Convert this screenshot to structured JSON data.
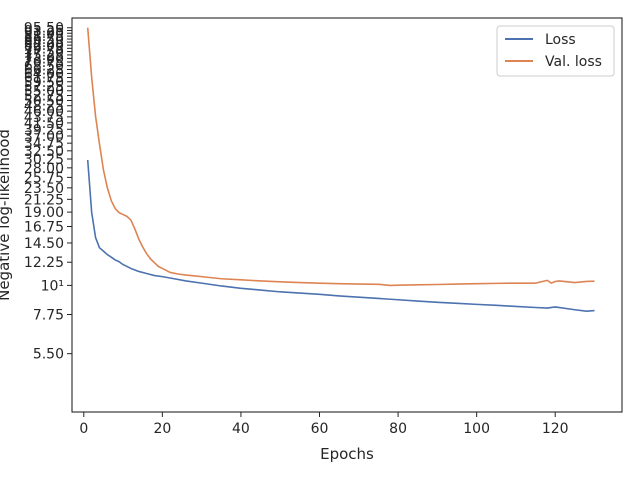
{
  "chart_data": {
    "type": "line",
    "title": "",
    "xlabel": "Epochs",
    "ylabel": "Negative log-likelihood",
    "yscale": "log",
    "grid": false,
    "legend_position": "top-right",
    "xlim": [
      -3,
      137
    ],
    "ylim": [
      3.3,
      104
    ],
    "x_ticks": [
      0,
      20,
      40,
      60,
      80,
      100,
      120
    ],
    "x_tick_labels": [
      "0",
      "20",
      "40",
      "60",
      "80",
      "100",
      "120"
    ],
    "y_ticks": [
      5.5,
      7.75,
      10,
      12.25,
      14.5,
      16.75,
      19.0,
      21.25,
      23.5,
      25.75,
      28.0,
      30.25,
      32.5,
      34.75,
      37.0,
      39.25,
      41.5,
      43.75,
      46.0,
      48.25,
      50.5,
      52.75,
      55.0,
      57.25,
      59.5,
      61.75,
      64.0,
      66.25,
      68.5,
      70.75,
      73.0,
      75.25,
      77.5,
      79.75,
      82.0,
      84.25,
      86.5,
      88.75,
      91.0,
      93.25,
      95.5
    ],
    "y_tick_labels": [
      "5.50",
      "7.75",
      "10¹",
      "12.25",
      "14.50",
      "16.75",
      "19.00",
      "21.25",
      "23.50",
      "25.75",
      "28.00",
      "30.25",
      "32.50",
      "34.75",
      "37.00",
      "39.25",
      "41.50",
      "43.75",
      "46.00",
      "48.25",
      "50.50",
      "52.75",
      "55.00",
      "57.25",
      "59.50",
      "61.75",
      "64.00",
      "66.25",
      "68.50",
      "70.75",
      "73.00",
      "75.25",
      "77.50",
      "79.75",
      "82.00",
      "84.25",
      "86.50",
      "88.75",
      "91.00",
      "93.25",
      "95.50"
    ],
    "series": [
      {
        "name": "Loss",
        "color": "#4c72b0",
        "x": [
          1,
          2,
          3,
          4,
          5,
          6,
          7,
          8,
          9,
          10,
          12,
          14,
          16,
          18,
          20,
          23,
          26,
          30,
          35,
          40,
          45,
          50,
          55,
          60,
          65,
          70,
          75,
          80,
          85,
          90,
          95,
          100,
          105,
          110,
          115,
          118,
          120,
          125,
          128,
          130
        ],
        "values": [
          30.0,
          19.0,
          15.2,
          13.9,
          13.5,
          13.1,
          12.8,
          12.5,
          12.3,
          12.0,
          11.6,
          11.3,
          11.1,
          10.9,
          10.8,
          10.6,
          10.4,
          10.2,
          9.95,
          9.75,
          9.6,
          9.45,
          9.35,
          9.25,
          9.12,
          9.02,
          8.92,
          8.82,
          8.72,
          8.62,
          8.55,
          8.47,
          8.4,
          8.32,
          8.24,
          8.2,
          8.28,
          8.08,
          7.98,
          8.02
        ]
      },
      {
        "name": "Val. loss",
        "color": "#dd8452",
        "x": [
          1,
          2,
          3,
          4,
          5,
          6,
          7,
          8,
          9,
          10,
          11,
          12,
          13,
          14,
          15,
          16,
          17,
          18,
          19,
          20,
          22,
          24,
          26,
          28,
          30,
          35,
          40,
          45,
          50,
          55,
          60,
          65,
          70,
          75,
          78,
          80,
          85,
          90,
          95,
          100,
          105,
          110,
          115,
          118,
          119,
          120,
          121,
          125,
          128,
          130
        ],
        "values": [
          95.5,
          62.0,
          44.0,
          34.5,
          27.5,
          23.5,
          21.0,
          19.6,
          18.9,
          18.6,
          18.3,
          17.7,
          16.4,
          15.0,
          14.0,
          13.2,
          12.6,
          12.2,
          11.8,
          11.6,
          11.2,
          11.05,
          10.95,
          10.88,
          10.8,
          10.6,
          10.5,
          10.4,
          10.32,
          10.25,
          10.2,
          10.15,
          10.12,
          10.1,
          10.0,
          10.02,
          10.05,
          10.08,
          10.12,
          10.15,
          10.18,
          10.2,
          10.2,
          10.45,
          10.2,
          10.35,
          10.4,
          10.25,
          10.35,
          10.38
        ]
      }
    ]
  }
}
